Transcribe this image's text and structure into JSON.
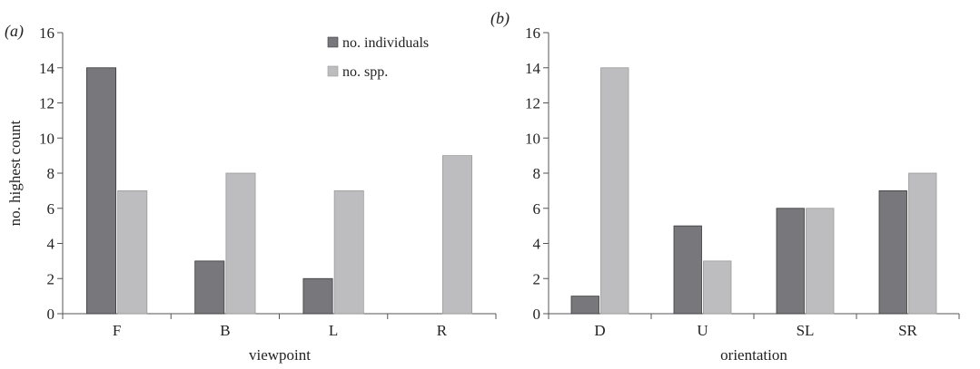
{
  "colors": {
    "individuals": "#77777c",
    "species": "#bdbdbf",
    "axis": "#555555",
    "stroke": "#3a3a3a"
  },
  "legend": {
    "individuals": "no. individuals",
    "species": "no. spp."
  },
  "chart_data": [
    {
      "type": "bar",
      "panel": "(a)",
      "categories": [
        "F",
        "B",
        "L",
        "R"
      ],
      "series": [
        {
          "name": "no. individuals",
          "values": [
            14,
            3,
            2,
            0
          ]
        },
        {
          "name": "no. spp.",
          "values": [
            7,
            8,
            7,
            9
          ]
        }
      ],
      "xlabel": "viewpoint",
      "ylabel": "no. highest count",
      "ylim": [
        0,
        16
      ],
      "yticks": [
        "0",
        "2",
        "4",
        "6",
        "8",
        "10",
        "12",
        "14",
        "16"
      ],
      "legend_position": "top-right",
      "grid": false
    },
    {
      "type": "bar",
      "panel": "(b)",
      "categories": [
        "D",
        "U",
        "SL",
        "SR"
      ],
      "series": [
        {
          "name": "no. individuals",
          "values": [
            1,
            5,
            6,
            7
          ]
        },
        {
          "name": "no. spp.",
          "values": [
            14,
            3,
            6,
            8
          ]
        }
      ],
      "xlabel": "orientation",
      "ylabel": "",
      "ylim": [
        0,
        16
      ],
      "yticks": [
        "0",
        "2",
        "4",
        "6",
        "8",
        "10",
        "12",
        "14",
        "16"
      ],
      "grid": false
    }
  ]
}
